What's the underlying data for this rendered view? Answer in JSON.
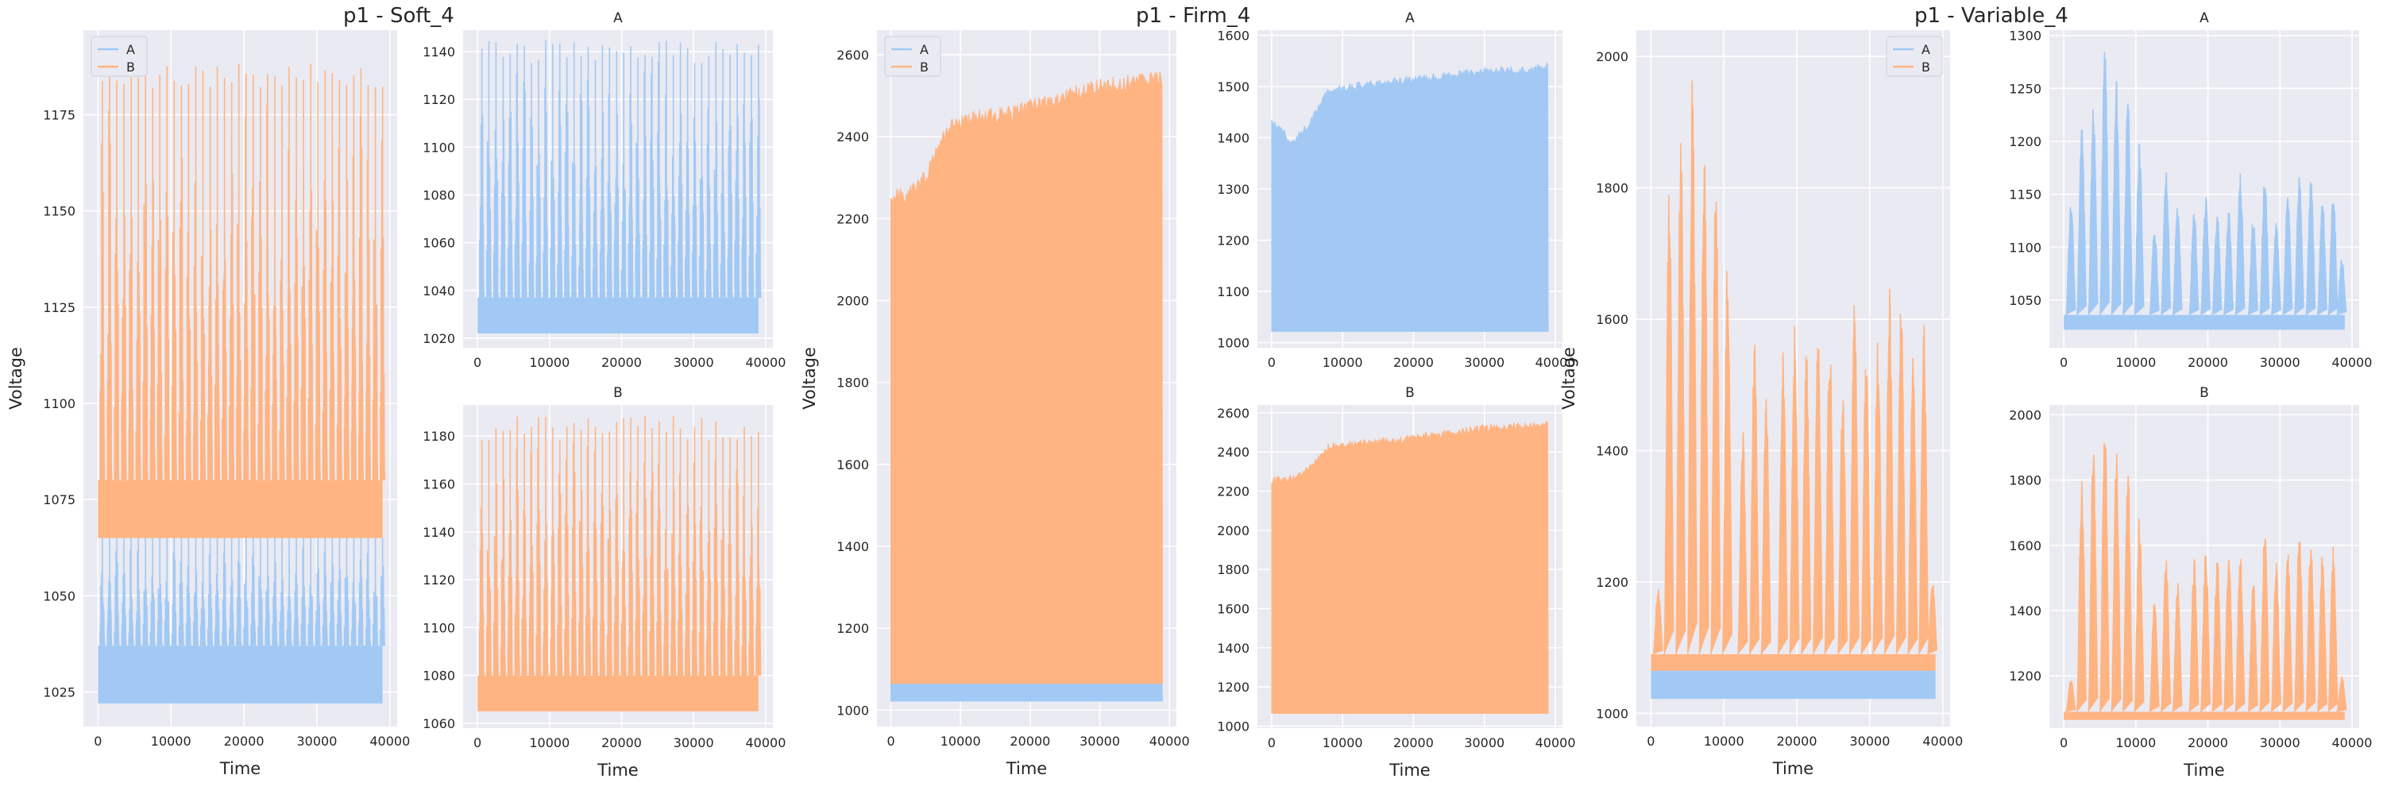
{
  "panel_titles": [
    "p1 - Soft_4",
    "p1 - Firm_4",
    "p1 - Variable_4"
  ],
  "colors": {
    "A": "#a1c9f4",
    "B": "#ffb482",
    "axes_bg": "#eaeaf2",
    "grid": "#ffffff",
    "text": "#262626"
  },
  "chart_data": [
    {
      "id": "soft-combined",
      "type": "line",
      "title": "",
      "xlabel": "Time",
      "ylabel": "Voltage",
      "xlim": [
        -2000,
        41000
      ],
      "ylim": [
        1016,
        1197
      ],
      "xticks": [
        0,
        10000,
        20000,
        30000,
        40000
      ],
      "yticks": [
        1025,
        1050,
        1075,
        1100,
        1125,
        1150,
        1175
      ],
      "legend": "top-left",
      "legend_entries": [
        "A",
        "B"
      ],
      "grid": true,
      "series": [
        {
          "name": "A",
          "kind": "band",
          "floor": 1022,
          "base": 1037,
          "peak": 1065,
          "peak_top": 1065,
          "cycles": 40
        },
        {
          "name": "B",
          "kind": "band",
          "floor": 1065,
          "base": 1080,
          "peak": 1182,
          "peak_top": 1189,
          "cycles": 40
        }
      ]
    },
    {
      "id": "soft-a",
      "type": "line",
      "title": "A",
      "xlabel": "",
      "ylabel": "",
      "xlim": [
        -2000,
        41000
      ],
      "ylim": [
        1016,
        1149
      ],
      "xticks": [
        0,
        10000,
        20000,
        30000,
        40000
      ],
      "yticks": [
        1020,
        1040,
        1060,
        1080,
        1100,
        1120,
        1140
      ],
      "grid": true,
      "series": [
        {
          "name": "A",
          "kind": "band",
          "floor": 1022,
          "base": 1037,
          "peak": 1135,
          "peak_top": 1145,
          "cycles": 40
        }
      ]
    },
    {
      "id": "soft-b",
      "type": "line",
      "title": "B",
      "xlabel": "Time",
      "ylabel": "",
      "xlim": [
        -2000,
        41000
      ],
      "ylim": [
        1058,
        1193
      ],
      "xticks": [
        0,
        10000,
        20000,
        30000,
        40000
      ],
      "yticks": [
        1060,
        1080,
        1100,
        1120,
        1140,
        1160,
        1180
      ],
      "grid": true,
      "series": [
        {
          "name": "B",
          "kind": "band",
          "floor": 1065,
          "base": 1080,
          "peak": 1178,
          "peak_top": 1189,
          "cycles": 40
        }
      ]
    },
    {
      "id": "firm-combined",
      "type": "line",
      "title": "",
      "xlabel": "Time",
      "ylabel": "Voltage",
      "xlim": [
        -2000,
        41000
      ],
      "ylim": [
        960,
        2660
      ],
      "xticks": [
        0,
        10000,
        20000,
        30000,
        40000
      ],
      "yticks": [
        1000,
        1200,
        1400,
        1600,
        1800,
        2000,
        2200,
        2400,
        2600
      ],
      "legend": "top-left",
      "legend_entries": [
        "A",
        "B"
      ],
      "grid": true,
      "series": [
        {
          "name": "A",
          "kind": "fill",
          "floor": 1022,
          "base": 1065,
          "envelope": [
            [
              0,
              1065
            ],
            [
              39000,
              1065
            ]
          ]
        },
        {
          "name": "B",
          "kind": "fill",
          "floor": 1065,
          "base": 1065,
          "envelope": [
            [
              0,
              2250
            ],
            [
              3000,
              2260
            ],
            [
              5000,
              2300
            ],
            [
              8000,
              2420
            ],
            [
              12000,
              2440
            ],
            [
              18000,
              2460
            ],
            [
              24000,
              2490
            ],
            [
              30000,
              2520
            ],
            [
              35000,
              2530
            ],
            [
              39000,
              2540
            ]
          ]
        }
      ]
    },
    {
      "id": "firm-a",
      "type": "line",
      "title": "A",
      "xlabel": "",
      "ylabel": "",
      "xlim": [
        -2000,
        41000
      ],
      "ylim": [
        990,
        1610
      ],
      "xticks": [
        0,
        10000,
        20000,
        30000,
        40000
      ],
      "yticks": [
        1000,
        1100,
        1200,
        1300,
        1400,
        1500,
        1600
      ],
      "grid": true,
      "series": [
        {
          "name": "A",
          "kind": "fill",
          "floor": 1022,
          "base": 1022,
          "envelope": [
            [
              0,
              1430
            ],
            [
              3000,
              1390
            ],
            [
              5000,
              1420
            ],
            [
              8000,
              1490
            ],
            [
              12000,
              1500
            ],
            [
              18000,
              1510
            ],
            [
              24000,
              1520
            ],
            [
              30000,
              1530
            ],
            [
              35000,
              1530
            ],
            [
              39000,
              1540
            ]
          ]
        }
      ]
    },
    {
      "id": "firm-b",
      "type": "line",
      "title": "B",
      "xlabel": "Time",
      "ylabel": "",
      "xlim": [
        -2000,
        41000
      ],
      "ylim": [
        990,
        2640
      ],
      "xticks": [
        0,
        10000,
        20000,
        30000,
        40000
      ],
      "yticks": [
        1000,
        1200,
        1400,
        1600,
        1800,
        2000,
        2200,
        2400,
        2600
      ],
      "grid": true,
      "series": [
        {
          "name": "B",
          "kind": "fill",
          "floor": 1065,
          "base": 1065,
          "envelope": [
            [
              0,
              2250
            ],
            [
              3000,
              2260
            ],
            [
              5000,
              2300
            ],
            [
              8000,
              2420
            ],
            [
              12000,
              2440
            ],
            [
              18000,
              2460
            ],
            [
              24000,
              2490
            ],
            [
              30000,
              2520
            ],
            [
              35000,
              2530
            ],
            [
              39000,
              2540
            ]
          ]
        }
      ]
    },
    {
      "id": "variable-combined",
      "type": "line",
      "title": "",
      "xlabel": "Time",
      "ylabel": "Voltage",
      "xlim": [
        -2000,
        41000
      ],
      "ylim": [
        980,
        2040
      ],
      "xticks": [
        0,
        10000,
        20000,
        30000,
        40000
      ],
      "yticks": [
        1000,
        1200,
        1400,
        1600,
        1800,
        2000
      ],
      "legend": "top-right",
      "legend_entries": [
        "A",
        "B"
      ],
      "grid": true,
      "series": [
        {
          "name": "A",
          "kind": "band",
          "floor": 1022,
          "base": 1065,
          "peak": 1065,
          "peak_top": 1065,
          "cycles": 30
        },
        {
          "name": "B",
          "kind": "bursts",
          "floor": 1065,
          "base": 1090,
          "bursts": [
            [
              1000,
              1190
            ],
            [
              2500,
              1810
            ],
            [
              4100,
              1900
            ],
            [
              5700,
              1990
            ],
            [
              7300,
              1890
            ],
            [
              8900,
              1850
            ],
            [
              10500,
              1700
            ],
            [
              12600,
              1440
            ],
            [
              14200,
              1570
            ],
            [
              15800,
              1490
            ],
            [
              18100,
              1560
            ],
            [
              19700,
              1600
            ],
            [
              21300,
              1575
            ],
            [
              22900,
              1580
            ],
            [
              24500,
              1580
            ],
            [
              26300,
              1500
            ],
            [
              27900,
              1650
            ],
            [
              29500,
              1550
            ],
            [
              31100,
              1590
            ],
            [
              32700,
              1650
            ],
            [
              34300,
              1640
            ],
            [
              35900,
              1580
            ],
            [
              37400,
              1600
            ],
            [
              38600,
              1200
            ]
          ]
        }
      ]
    },
    {
      "id": "variable-a",
      "type": "line",
      "title": "A",
      "xlabel": "",
      "ylabel": "",
      "xlim": [
        -2000,
        41000
      ],
      "ylim": [
        1005,
        1305
      ],
      "xticks": [
        0,
        10000,
        20000,
        30000,
        40000
      ],
      "yticks": [
        1050,
        1100,
        1150,
        1200,
        1250,
        1300
      ],
      "grid": true,
      "series": [
        {
          "name": "A",
          "kind": "bursts",
          "floor": 1022,
          "base": 1036,
          "bursts": [
            [
              1000,
              1145
            ],
            [
              2500,
              1215
            ],
            [
              4100,
              1240
            ],
            [
              5700,
              1295
            ],
            [
              7300,
              1260
            ],
            [
              8900,
              1240
            ],
            [
              10500,
              1200
            ],
            [
              12600,
              1120
            ],
            [
              14200,
              1180
            ],
            [
              15800,
              1140
            ],
            [
              18100,
              1135
            ],
            [
              19700,
              1150
            ],
            [
              21300,
              1135
            ],
            [
              22900,
              1135
            ],
            [
              24500,
              1170
            ],
            [
              26300,
              1130
            ],
            [
              27900,
              1170
            ],
            [
              29500,
              1125
            ],
            [
              31100,
              1150
            ],
            [
              32700,
              1170
            ],
            [
              34300,
              1165
            ],
            [
              35900,
              1150
            ],
            [
              37400,
              1155
            ],
            [
              38600,
              1090
            ]
          ]
        }
      ]
    },
    {
      "id": "variable-b",
      "type": "line",
      "title": "B",
      "xlabel": "Time",
      "ylabel": "",
      "xlim": [
        -2000,
        41000
      ],
      "ylim": [
        1040,
        2030
      ],
      "xticks": [
        0,
        10000,
        20000,
        30000,
        40000
      ],
      "yticks": [
        1200,
        1400,
        1600,
        1800,
        2000
      ],
      "grid": true,
      "series": [
        {
          "name": "B",
          "kind": "bursts",
          "floor": 1065,
          "base": 1090,
          "bursts": [
            [
              1000,
              1190
            ],
            [
              2500,
              1810
            ],
            [
              4100,
              1900
            ],
            [
              5700,
              1990
            ],
            [
              7300,
              1890
            ],
            [
              8900,
              1850
            ],
            [
              10500,
              1700
            ],
            [
              12600,
              1440
            ],
            [
              14200,
              1570
            ],
            [
              15800,
              1490
            ],
            [
              18100,
              1560
            ],
            [
              19700,
              1600
            ],
            [
              21300,
              1575
            ],
            [
              22900,
              1580
            ],
            [
              24500,
              1580
            ],
            [
              26300,
              1500
            ],
            [
              27900,
              1650
            ],
            [
              29500,
              1550
            ],
            [
              31100,
              1590
            ],
            [
              32700,
              1650
            ],
            [
              34300,
              1640
            ],
            [
              35900,
              1580
            ],
            [
              37400,
              1600
            ],
            [
              38600,
              1200
            ]
          ]
        }
      ]
    }
  ]
}
